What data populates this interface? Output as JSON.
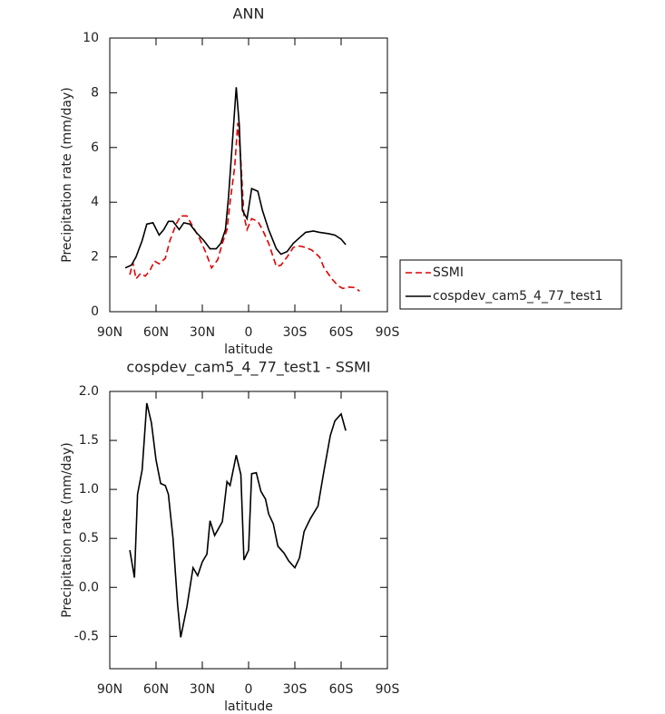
{
  "chart_data": [
    {
      "type": "line",
      "title": "ANN",
      "xlabel": "latitude",
      "ylabel": "Precipitation rate (mm/day)",
      "xlim": [
        90,
        -90
      ],
      "xticks": [
        {
          "value": 90,
          "label": "90N"
        },
        {
          "value": 60,
          "label": "60N"
        },
        {
          "value": 30,
          "label": "30N"
        },
        0,
        {
          "value": -30,
          "label": "30S"
        },
        {
          "value": -60,
          "label": "60S"
        },
        {
          "value": -90,
          "label": "90S"
        }
      ],
      "ylim": [
        0,
        10
      ],
      "yticks": [
        0,
        2,
        4,
        6,
        8,
        10
      ],
      "legend": "outside right",
      "series": [
        {
          "name": "SSMI",
          "color": "#e00000",
          "dash": true,
          "x": [
            77,
            75,
            73,
            70,
            67,
            64,
            61,
            58,
            54,
            51,
            47,
            44,
            40,
            36,
            32,
            28,
            24,
            20,
            17,
            14,
            12,
            9,
            7,
            5,
            3,
            1,
            -2,
            -6,
            -9,
            -13,
            -18,
            -21,
            -25,
            -29,
            -33,
            -37,
            -41,
            -46,
            -49,
            -54,
            -58,
            -61,
            -65,
            -69,
            -72
          ],
          "values": [
            1.35,
            1.8,
            1.2,
            1.4,
            1.3,
            1.5,
            1.85,
            1.75,
            1.95,
            2.6,
            3.2,
            3.5,
            3.5,
            3.1,
            2.7,
            2.2,
            1.6,
            1.9,
            2.5,
            3.0,
            4.0,
            5.3,
            6.9,
            5.5,
            3.5,
            3.0,
            3.4,
            3.3,
            3.0,
            2.5,
            1.65,
            1.7,
            2.0,
            2.35,
            2.4,
            2.35,
            2.25,
            2.0,
            1.6,
            1.2,
            0.95,
            0.85,
            0.9,
            0.88,
            0.75
          ]
        },
        {
          "name": "cospdev_cam5_4_77_test1",
          "color": "#000000",
          "dash": false,
          "x": [
            80,
            76,
            73,
            69,
            66,
            62,
            58,
            55,
            52,
            49,
            45,
            42,
            38,
            34,
            29,
            25,
            21,
            18,
            15,
            13,
            11,
            8,
            6,
            4,
            1,
            -2,
            -6,
            -9,
            -13,
            -18,
            -21,
            -25,
            -29,
            -33,
            -37,
            -42,
            -46,
            -52,
            -56,
            -60,
            -63
          ],
          "values": [
            1.6,
            1.7,
            2.0,
            2.6,
            3.2,
            3.25,
            2.8,
            3.0,
            3.3,
            3.3,
            3.0,
            3.25,
            3.2,
            2.9,
            2.6,
            2.3,
            2.3,
            2.5,
            3.0,
            4.2,
            5.8,
            8.2,
            6.8,
            3.7,
            3.4,
            4.5,
            4.4,
            3.7,
            3.0,
            2.3,
            2.1,
            2.2,
            2.5,
            2.7,
            2.9,
            2.95,
            2.9,
            2.85,
            2.8,
            2.65,
            2.45
          ]
        }
      ]
    },
    {
      "type": "line",
      "title": "cospdev_cam5_4_77_test1 - SSMI",
      "xlabel": "latitude",
      "ylabel": "Precipitation rate (mm/day)",
      "xlim": [
        90,
        -90
      ],
      "xticks": [
        {
          "value": 90,
          "label": "90N"
        },
        {
          "value": 60,
          "label": "60N"
        },
        {
          "value": 30,
          "label": "30N"
        },
        0,
        {
          "value": -30,
          "label": "30S"
        },
        {
          "value": -60,
          "label": "60S"
        },
        {
          "value": -90,
          "label": "90S"
        }
      ],
      "ylim": [
        -0.83,
        2.0
      ],
      "yticks": [
        -0.5,
        {
          "value": 0,
          "label": "0.0"
        },
        0.5,
        {
          "value": 1,
          "label": "1.0"
        },
        1.5,
        {
          "value": 2,
          "label": "2.0"
        }
      ],
      "series": [
        {
          "color": "#000000",
          "dash": false,
          "x": [
            77,
            74,
            72,
            69,
            66,
            63,
            60,
            57,
            54,
            52,
            49,
            46,
            44,
            40,
            36,
            33,
            30,
            27,
            25,
            22,
            17,
            14,
            12,
            8,
            5,
            3,
            0,
            -2,
            -5,
            -8,
            -11,
            -13,
            -16,
            -19,
            -23,
            -26,
            -30,
            -33,
            -36,
            -40,
            -45,
            -49,
            -53,
            -56,
            -60,
            -63
          ],
          "values": [
            0.38,
            0.1,
            0.95,
            1.2,
            1.88,
            1.68,
            1.3,
            1.06,
            1.04,
            0.95,
            0.5,
            -0.18,
            -0.51,
            -0.2,
            0.2,
            0.12,
            0.26,
            0.34,
            0.68,
            0.53,
            0.67,
            1.08,
            1.04,
            1.35,
            1.15,
            0.28,
            0.38,
            1.16,
            1.17,
            0.98,
            0.9,
            0.75,
            0.65,
            0.42,
            0.35,
            0.27,
            0.2,
            0.3,
            0.57,
            0.7,
            0.83,
            1.2,
            1.55,
            1.7,
            1.77,
            1.6
          ]
        }
      ]
    }
  ]
}
